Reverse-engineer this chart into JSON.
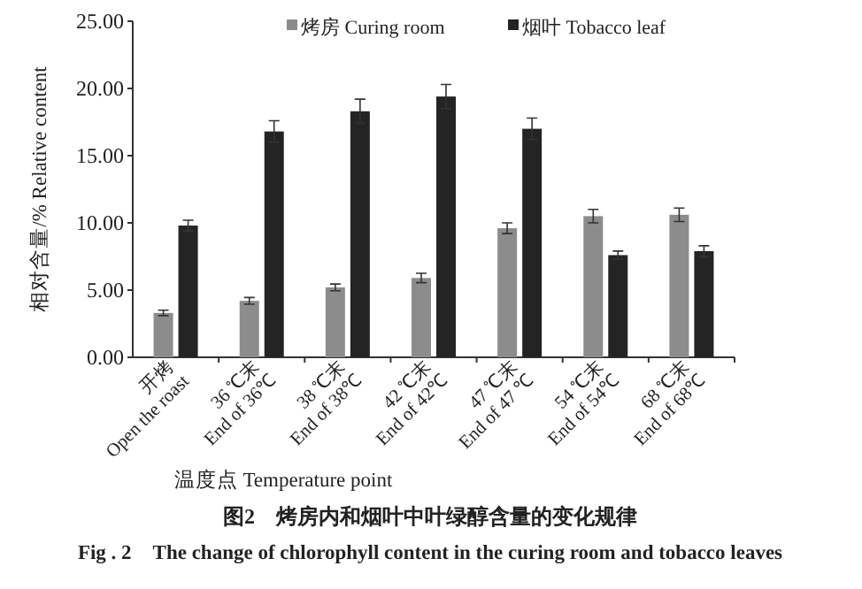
{
  "chart_data": {
    "type": "bar",
    "title": "图2　烤房内和烟叶中叶绿醇含量的变化规律",
    "subtitle": "Fig . 2　The change of chlorophyll content in the curing room and tobacco leaves",
    "xlabel": "温度点 Temperature point",
    "ylabel": "相对含量/% Relative content",
    "categories": [
      "开烤\nOpen the roast",
      "36 ℃末\nEnd of 36℃",
      "38 ℃末\nEnd of 38℃",
      "42 ℃末\nEnd of 42℃",
      "47 ℃末\nEnd of 47 ℃",
      "54 ℃末\nEnd of 54℃",
      "68 ℃末\nEnd of 68℃"
    ],
    "series": [
      {
        "name": "烤房 Curing room",
        "color": "#8c8c8c",
        "values": [
          3.3,
          4.2,
          5.2,
          5.9,
          9.6,
          10.5,
          10.6
        ],
        "errors": [
          0.2,
          0.25,
          0.25,
          0.35,
          0.4,
          0.5,
          0.5
        ]
      },
      {
        "name": "烟叶 Tobacco leaf",
        "color": "#242424",
        "values": [
          9.8,
          16.8,
          18.3,
          19.4,
          17.0,
          7.6,
          7.9
        ],
        "errors": [
          0.4,
          0.8,
          0.9,
          0.9,
          0.8,
          0.3,
          0.4
        ]
      }
    ],
    "ylim": [
      0,
      25
    ],
    "yticks": [
      {
        "value": 0,
        "label": "0.00"
      },
      {
        "value": 5,
        "label": "5.00"
      },
      {
        "value": 10,
        "label": "10.00"
      },
      {
        "value": 15,
        "label": "15.00"
      },
      {
        "value": 20,
        "label": "20.00"
      },
      {
        "value": 25,
        "label": "25.00"
      }
    ],
    "grid": false,
    "legend": "top"
  }
}
